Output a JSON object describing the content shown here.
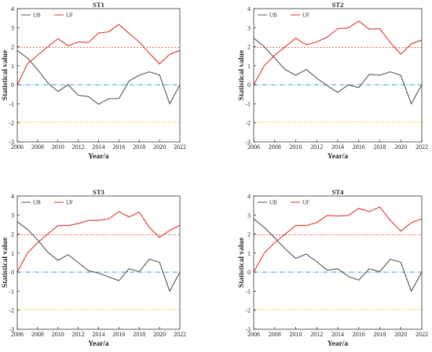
{
  "chart_data": [
    {
      "type": "line",
      "title": "ST1",
      "xlabel": "Year/a",
      "ylabel": "Statistical value",
      "xlim": [
        2006,
        2022
      ],
      "ylim": [
        -3,
        4
      ],
      "xticks": [
        2006,
        2008,
        2010,
        2012,
        2014,
        2016,
        2018,
        2020,
        2022
      ],
      "yticks": [
        -3,
        -2,
        -1,
        0,
        1,
        2,
        3,
        4
      ],
      "x": [
        2006,
        2007,
        2008,
        2009,
        2010,
        2011,
        2012,
        2013,
        2014,
        2015,
        2016,
        2017,
        2018,
        2019,
        2020,
        2021,
        2022
      ],
      "series": [
        {
          "name": "UB",
          "color": "#555555",
          "values": [
            1.8,
            1.4,
            0.8,
            0.1,
            -0.35,
            0.0,
            -0.55,
            -0.62,
            -1.02,
            -0.73,
            -0.73,
            0.2,
            0.5,
            0.68,
            0.52,
            -1.0,
            0.0
          ]
        },
        {
          "name": "UF",
          "color": "#e03030",
          "values": [
            0.0,
            1.1,
            1.55,
            2.0,
            2.42,
            2.05,
            2.25,
            2.22,
            2.72,
            2.78,
            3.17,
            2.7,
            2.25,
            1.65,
            1.1,
            1.6,
            1.8
          ]
        }
      ],
      "reference_lines": [
        {
          "y": 1.96,
          "color": "#ff6666",
          "style": "dotted"
        },
        {
          "y": 0,
          "color": "#3aa0c8",
          "style": "dashdot"
        },
        {
          "y": -1.96,
          "color": "#e8d040",
          "style": "dotted"
        }
      ],
      "legend": "top-left"
    },
    {
      "type": "line",
      "title": "ST2",
      "xlabel": "Year/a",
      "ylabel": "Statistical value",
      "xlim": [
        2006,
        2022
      ],
      "ylim": [
        -3,
        4
      ],
      "xticks": [
        2006,
        2008,
        2010,
        2012,
        2014,
        2016,
        2018,
        2020,
        2022
      ],
      "yticks": [
        -3,
        -2,
        -1,
        0,
        1,
        2,
        3,
        4
      ],
      "x": [
        2006,
        2007,
        2008,
        2009,
        2010,
        2011,
        2012,
        2013,
        2014,
        2015,
        2016,
        2017,
        2018,
        2019,
        2020,
        2021,
        2022
      ],
      "series": [
        {
          "name": "UB",
          "color": "#555555",
          "values": [
            2.45,
            2.0,
            1.4,
            0.8,
            0.5,
            0.8,
            0.35,
            -0.05,
            -0.4,
            0.0,
            -0.15,
            0.55,
            0.5,
            0.68,
            0.5,
            -1.0,
            0.0
          ]
        },
        {
          "name": "UF",
          "color": "#e03030",
          "values": [
            0.0,
            1.0,
            1.55,
            2.0,
            2.45,
            2.1,
            2.25,
            2.5,
            2.95,
            2.98,
            3.35,
            2.92,
            2.95,
            2.22,
            1.6,
            2.15,
            2.35
          ]
        }
      ],
      "reference_lines": [
        {
          "y": 1.96,
          "color": "#ff6666",
          "style": "dotted"
        },
        {
          "y": 0,
          "color": "#3aa0c8",
          "style": "dashdot"
        },
        {
          "y": -1.96,
          "color": "#e8d040",
          "style": "dotted"
        }
      ],
      "legend": "top-left"
    },
    {
      "type": "line",
      "title": "ST3",
      "xlabel": "Year/a",
      "ylabel": "Statistical value",
      "xlim": [
        2006,
        2022
      ],
      "ylim": [
        -3,
        4
      ],
      "xticks": [
        2006,
        2008,
        2010,
        2012,
        2014,
        2016,
        2018,
        2020,
        2022
      ],
      "yticks": [
        -3,
        -2,
        -1,
        0,
        1,
        2,
        3,
        4
      ],
      "x": [
        2006,
        2007,
        2008,
        2009,
        2010,
        2011,
        2012,
        2013,
        2014,
        2015,
        2016,
        2017,
        2018,
        2019,
        2020,
        2021,
        2022
      ],
      "series": [
        {
          "name": "UB",
          "color": "#555555",
          "values": [
            2.65,
            2.25,
            1.7,
            1.05,
            0.62,
            0.92,
            0.5,
            0.08,
            -0.05,
            -0.25,
            -0.45,
            0.18,
            0.02,
            0.68,
            0.52,
            -1.0,
            0.0
          ]
        },
        {
          "name": "UF",
          "color": "#e03030",
          "values": [
            0.0,
            1.0,
            1.55,
            2.0,
            2.45,
            2.45,
            2.55,
            2.72,
            2.72,
            2.8,
            3.18,
            2.9,
            3.15,
            2.35,
            1.82,
            2.2,
            2.45
          ]
        }
      ],
      "reference_lines": [
        {
          "y": 1.96,
          "color": "#ff6666",
          "style": "dotted"
        },
        {
          "y": 0,
          "color": "#3aa0c8",
          "style": "dashdot"
        },
        {
          "y": -1.96,
          "color": "#e8d040",
          "style": "dotted"
        }
      ],
      "legend": "top-left"
    },
    {
      "type": "line",
      "title": "ST4",
      "xlabel": "Year/a",
      "ylabel": "Statistical value",
      "xlim": [
        2006,
        2022
      ],
      "ylim": [
        -3,
        4
      ],
      "xticks": [
        2006,
        2008,
        2010,
        2012,
        2014,
        2016,
        2018,
        2020,
        2022
      ],
      "yticks": [
        -3,
        -2,
        -1,
        0,
        1,
        2,
        3,
        4
      ],
      "x": [
        2006,
        2007,
        2008,
        2009,
        2010,
        2011,
        2012,
        2013,
        2014,
        2015,
        2016,
        2017,
        2018,
        2019,
        2020,
        2021,
        2022
      ],
      "series": [
        {
          "name": "UB",
          "color": "#555555",
          "values": [
            2.8,
            2.35,
            1.8,
            1.22,
            0.72,
            0.95,
            0.55,
            0.1,
            0.18,
            -0.22,
            -0.42,
            0.18,
            0.02,
            0.68,
            0.52,
            -1.0,
            0.0
          ]
        },
        {
          "name": "UF",
          "color": "#e03030",
          "values": [
            0.0,
            1.0,
            1.55,
            2.0,
            2.45,
            2.45,
            2.6,
            2.98,
            2.95,
            2.98,
            3.35,
            3.18,
            3.42,
            2.72,
            2.15,
            2.6,
            2.8
          ]
        }
      ],
      "reference_lines": [
        {
          "y": 1.96,
          "color": "#ff6666",
          "style": "dotted"
        },
        {
          "y": 0,
          "color": "#3aa0c8",
          "style": "dashdot"
        },
        {
          "y": -1.96,
          "color": "#e8d040",
          "style": "dotted"
        }
      ],
      "legend": "top-left"
    }
  ]
}
